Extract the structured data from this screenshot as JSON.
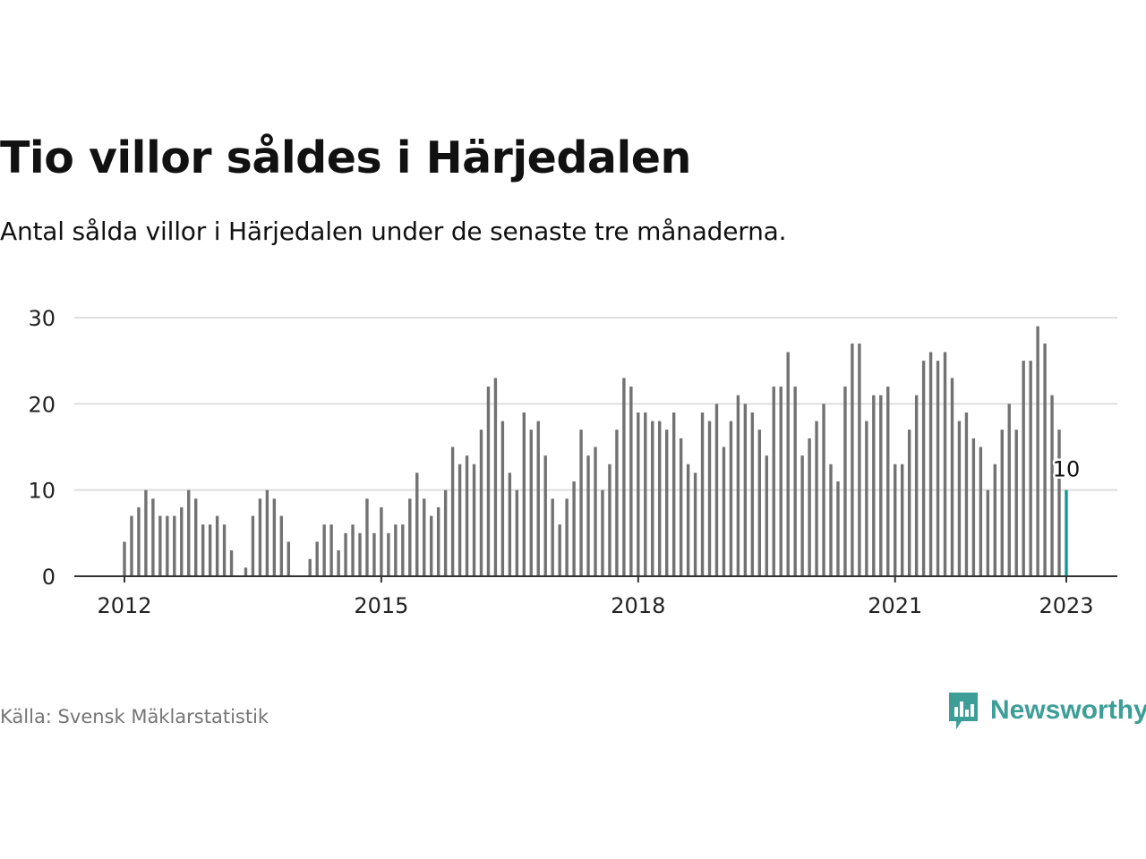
{
  "title": "Tio villor såldes i Härjedalen",
  "subtitle": "Antal sålda villor i Härjedalen under de senaste tre månaderna.",
  "source": "Källa: Svensk Mäklarstatistik",
  "brand": {
    "name": "Newsworthy",
    "icon": "newsworthy-logo-icon",
    "color": "#3d9e98"
  },
  "colors": {
    "bar": "#727272",
    "highlight": "#0f9b96",
    "grid": "#dedede",
    "axis": "#333333"
  },
  "chart_data": {
    "type": "bar",
    "x_start": "2012-01",
    "x_end": "2023-01",
    "x_ticks": [
      "2012",
      "2015",
      "2018",
      "2021",
      "2023"
    ],
    "y_ticks": [
      "0",
      "10",
      "20",
      "30"
    ],
    "ylim": [
      0,
      30
    ],
    "grid": true,
    "highlight_label": "10",
    "series": [
      {
        "values": [
          4,
          7,
          8,
          10,
          9,
          7,
          7,
          7,
          8,
          10,
          9,
          6,
          6,
          7,
          6,
          3,
          0,
          1,
          7,
          9,
          10,
          9,
          7,
          4,
          0,
          0,
          2,
          4,
          6,
          6,
          3,
          5,
          6,
          5,
          9,
          5,
          8,
          5,
          6,
          6,
          9,
          12,
          9,
          7,
          8,
          10,
          15,
          13,
          14,
          13,
          17,
          22,
          23,
          18,
          12,
          10,
          19,
          17,
          18,
          14,
          9,
          6,
          9,
          11,
          17,
          14,
          15,
          10,
          13,
          17,
          23,
          22,
          19,
          19,
          18,
          18,
          17,
          19,
          16,
          13,
          12,
          19,
          18,
          20,
          15,
          18,
          21,
          20,
          19,
          17,
          14,
          22,
          22,
          26,
          22,
          14,
          16,
          18,
          20,
          13,
          11,
          22,
          27,
          27,
          18,
          21,
          21,
          22,
          13,
          13,
          17,
          21,
          25,
          26,
          25,
          26,
          23,
          18,
          19,
          16,
          15,
          10,
          13,
          17,
          20,
          17,
          25,
          25,
          29,
          27,
          21,
          17,
          10
        ]
      }
    ]
  }
}
